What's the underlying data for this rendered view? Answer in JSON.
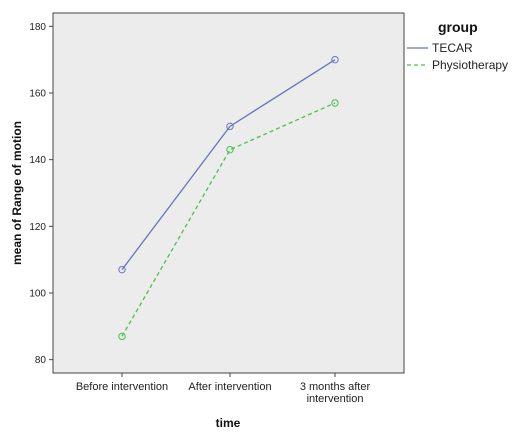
{
  "chart_data": {
    "type": "line",
    "title": "",
    "xlabel": "time",
    "ylabel": "mean of Range of motion",
    "categories": [
      [
        "Before intervention"
      ],
      [
        "After intervention"
      ],
      [
        "3 months after",
        "intervention"
      ]
    ],
    "series": [
      {
        "name": "TECAR",
        "values": [
          107,
          150,
          170
        ],
        "color": "#6675bf",
        "dash": "solid"
      },
      {
        "name": "Physiotherapy",
        "values": [
          87,
          143,
          157
        ],
        "color": "#42c448",
        "dash": "dashed"
      }
    ],
    "ylim": [
      76,
      184
    ],
    "yticks": [
      80,
      100,
      120,
      140,
      160,
      180
    ],
    "grid": false,
    "legend": {
      "title": "group",
      "position": "right"
    },
    "plot_background": "#ececec"
  }
}
